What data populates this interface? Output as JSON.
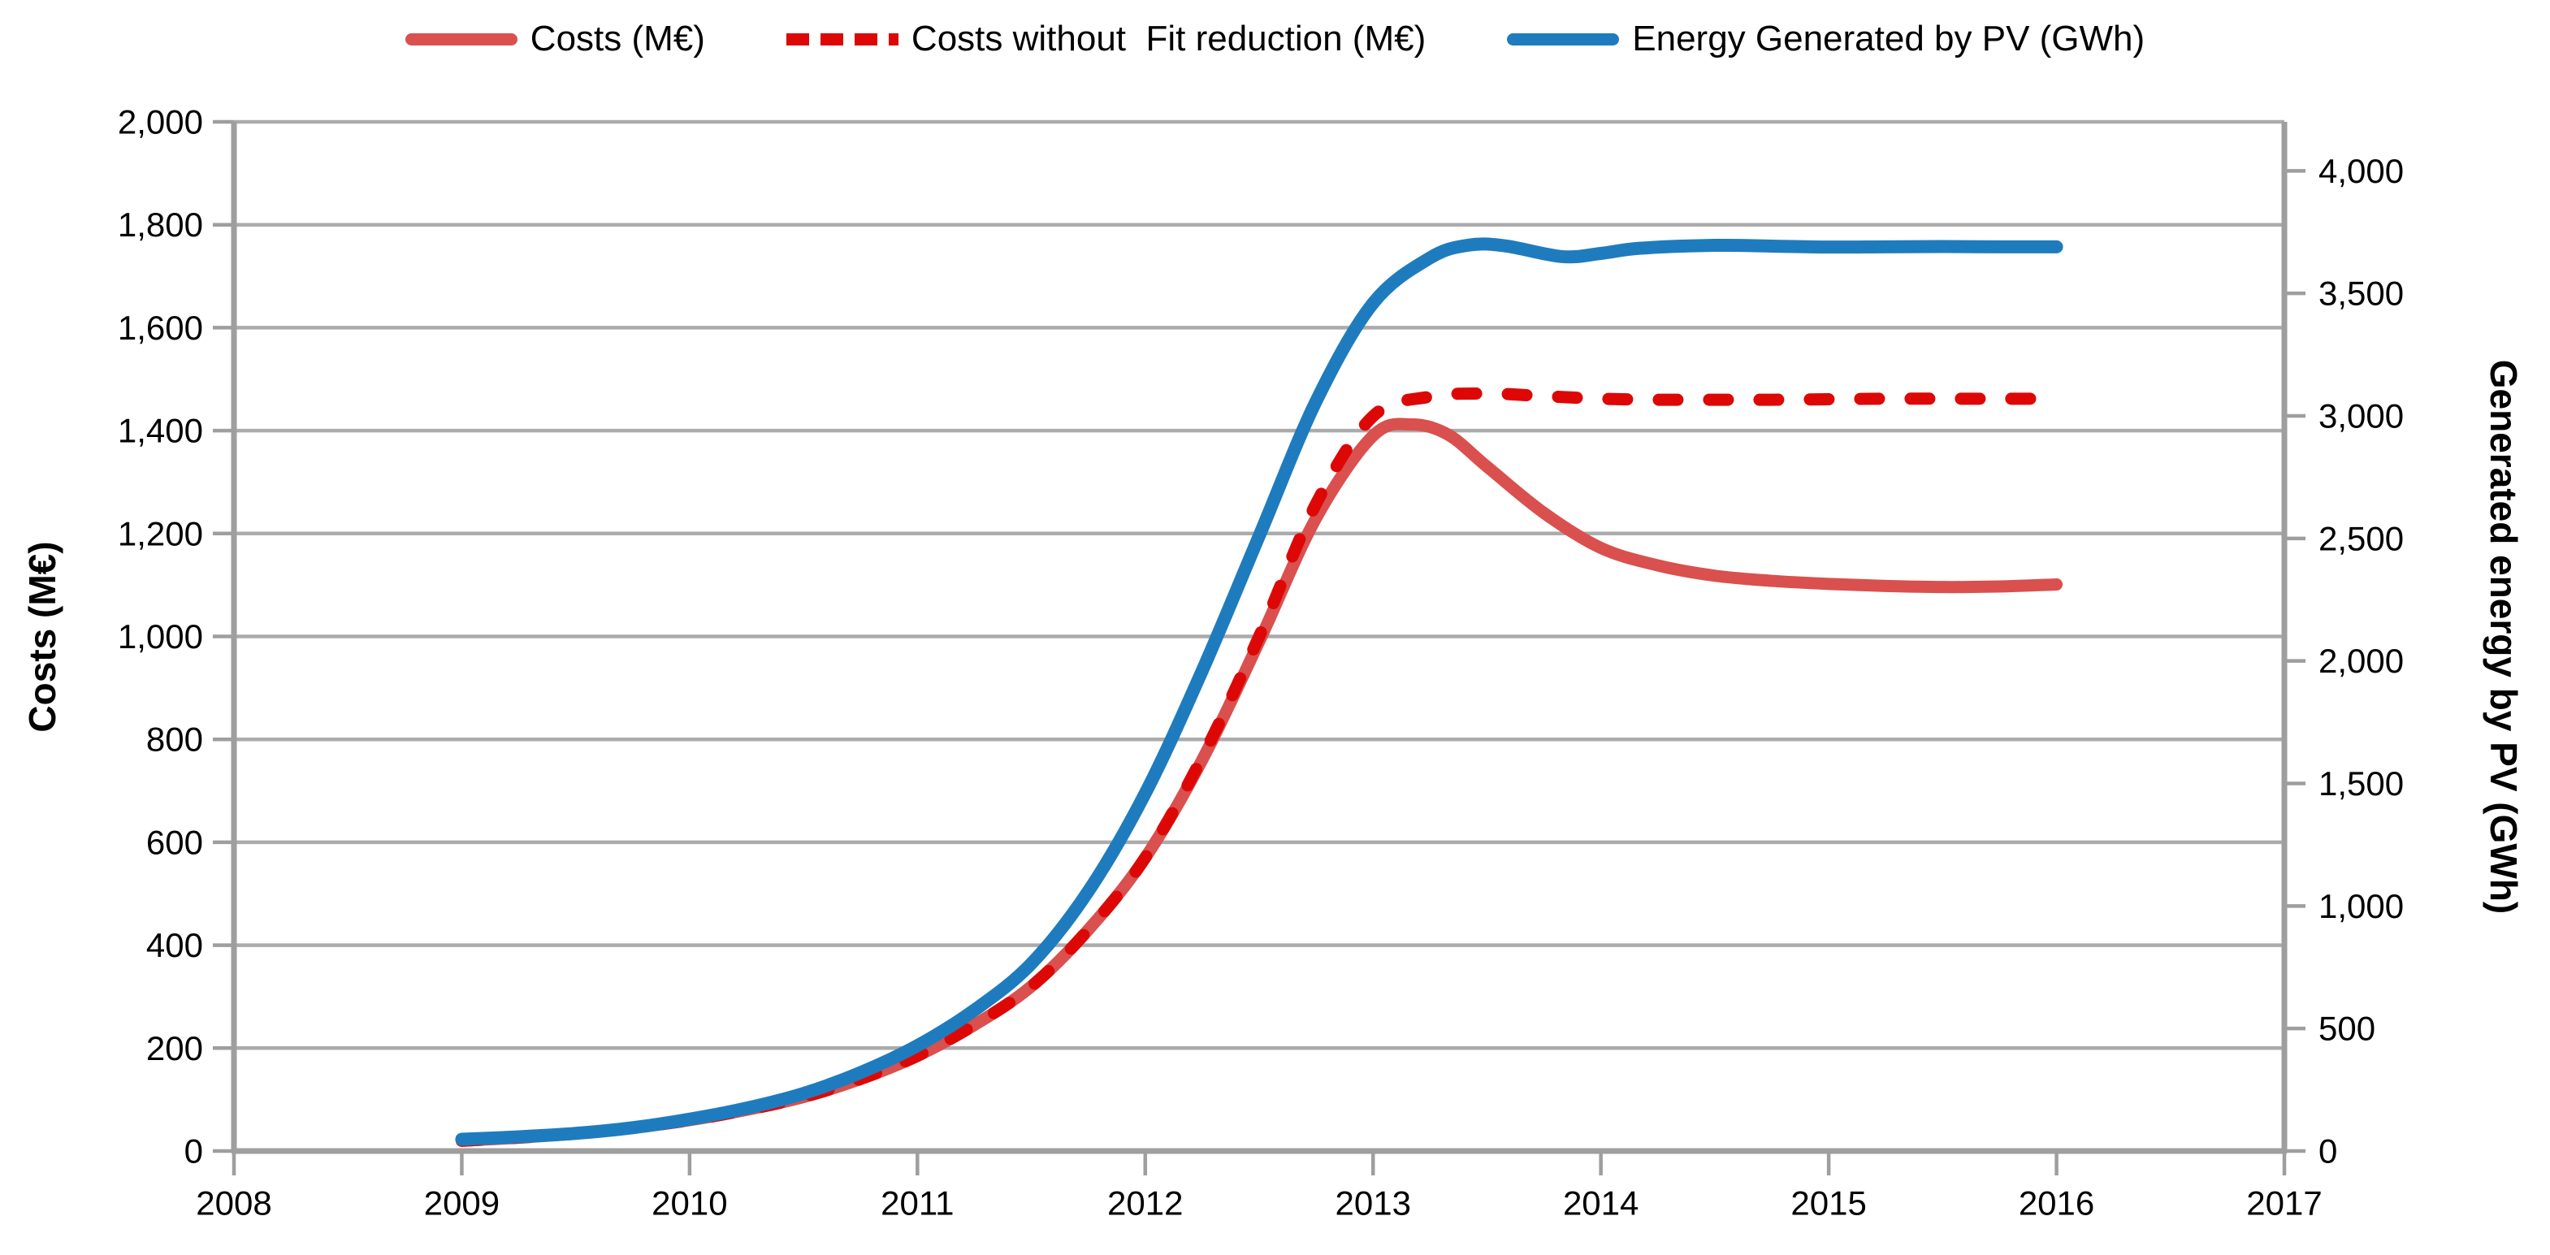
{
  "legend": {
    "items": [
      {
        "label": "Costs (M€)",
        "color": "#D9504E",
        "style": "solid"
      },
      {
        "label": "Costs without  Fit reduction (M€)",
        "color": "#DD0806",
        "style": "dashed"
      },
      {
        "label": "Energy Generated by PV (GWh)",
        "color": "#1E7CBE",
        "style": "solid"
      }
    ]
  },
  "colors": {
    "background": "#FFFFFF",
    "grid": "#ABABAB",
    "axis": "#9E9E9E",
    "text": "#000000"
  },
  "chart_data": {
    "type": "line",
    "title": "",
    "xlabel": "",
    "ylabel_left": "Costs (M€)",
    "ylabel_right": "Generated energy by PV (GWh)",
    "grid": "horizontal",
    "legend_position": "top",
    "x_axis": {
      "min": 2008,
      "max": 2017,
      "tick_values": [
        2008,
        2009,
        2010,
        2011,
        2012,
        2013,
        2014,
        2015,
        2016,
        2017
      ],
      "tick_labels": [
        "2008",
        "2009",
        "2010",
        "2011",
        "2012",
        "2013",
        "2014",
        "2015",
        "2016",
        "2017"
      ]
    },
    "left_axis": {
      "min": 0,
      "max": 2000,
      "step": 200,
      "tick_labels": [
        "0",
        "200",
        "400",
        "600",
        "800",
        "1,000",
        "1,200",
        "1,400",
        "1,600",
        "1,800",
        "2,000"
      ]
    },
    "right_axis": {
      "min": 0,
      "max": 4200,
      "step": 500,
      "tick_labels": [
        "0",
        "500",
        "1,000",
        "1,500",
        "2,000",
        "2,500",
        "3,000",
        "3,500",
        "4,000"
      ]
    },
    "series": [
      {
        "name": "Costs (M€)",
        "axis": "left",
        "color": "#D9504E",
        "dash": "solid",
        "points": [
          [
            2009,
            20
          ],
          [
            2009.25,
            26
          ],
          [
            2009.5,
            34
          ],
          [
            2009.75,
            45
          ],
          [
            2010,
            60
          ],
          [
            2010.25,
            80
          ],
          [
            2010.5,
            105
          ],
          [
            2010.75,
            140
          ],
          [
            2011,
            185
          ],
          [
            2011.25,
            245
          ],
          [
            2011.5,
            320
          ],
          [
            2011.75,
            430
          ],
          [
            2012,
            570
          ],
          [
            2012.25,
            760
          ],
          [
            2012.5,
            990
          ],
          [
            2012.75,
            1230
          ],
          [
            2013,
            1390
          ],
          [
            2013.17,
            1412
          ],
          [
            2013.33,
            1392
          ],
          [
            2013.5,
            1330
          ],
          [
            2013.75,
            1240
          ],
          [
            2014,
            1172
          ],
          [
            2014.25,
            1138
          ],
          [
            2014.5,
            1118
          ],
          [
            2014.75,
            1108
          ],
          [
            2015,
            1102
          ],
          [
            2015.25,
            1098
          ],
          [
            2015.5,
            1096
          ],
          [
            2015.75,
            1097
          ],
          [
            2016,
            1101
          ]
        ]
      },
      {
        "name": "Costs without  Fit reduction (M€)",
        "axis": "left",
        "color": "#DD0806",
        "dash": "dashed",
        "points": [
          [
            2009,
            20
          ],
          [
            2009.25,
            26
          ],
          [
            2009.5,
            34
          ],
          [
            2009.75,
            45
          ],
          [
            2010,
            60
          ],
          [
            2010.25,
            80
          ],
          [
            2010.5,
            105
          ],
          [
            2010.75,
            140
          ],
          [
            2011,
            185
          ],
          [
            2011.25,
            245
          ],
          [
            2011.5,
            320
          ],
          [
            2011.75,
            430
          ],
          [
            2012,
            570
          ],
          [
            2012.25,
            765
          ],
          [
            2012.5,
            1000
          ],
          [
            2012.75,
            1258
          ],
          [
            2013,
            1428
          ],
          [
            2013.25,
            1466
          ],
          [
            2013.5,
            1472
          ],
          [
            2013.75,
            1467
          ],
          [
            2014,
            1462
          ],
          [
            2014.25,
            1460
          ],
          [
            2014.5,
            1460
          ],
          [
            2014.75,
            1460
          ],
          [
            2015,
            1461
          ],
          [
            2015.25,
            1462
          ],
          [
            2015.5,
            1462
          ],
          [
            2015.75,
            1462
          ],
          [
            2016,
            1462
          ]
        ]
      },
      {
        "name": "Energy Generated by PV (GWh)",
        "axis": "right",
        "color": "#1E7CBE",
        "dash": "solid",
        "points": [
          [
            2009,
            48
          ],
          [
            2009.25,
            58
          ],
          [
            2009.5,
            72
          ],
          [
            2009.75,
            95
          ],
          [
            2010,
            130
          ],
          [
            2010.25,
            175
          ],
          [
            2010.5,
            235
          ],
          [
            2010.75,
            320
          ],
          [
            2011,
            430
          ],
          [
            2011.25,
            575
          ],
          [
            2011.5,
            765
          ],
          [
            2011.75,
            1060
          ],
          [
            2012,
            1460
          ],
          [
            2012.25,
            1960
          ],
          [
            2012.5,
            2510
          ],
          [
            2012.75,
            3060
          ],
          [
            2013,
            3460
          ],
          [
            2013.25,
            3645
          ],
          [
            2013.42,
            3697
          ],
          [
            2013.58,
            3694
          ],
          [
            2013.83,
            3650
          ],
          [
            2014,
            3663
          ],
          [
            2014.17,
            3684
          ],
          [
            2014.5,
            3696
          ],
          [
            2014.75,
            3693
          ],
          [
            2015,
            3689
          ],
          [
            2015.25,
            3690
          ],
          [
            2015.5,
            3691
          ],
          [
            2015.75,
            3690
          ],
          [
            2016,
            3690
          ]
        ]
      }
    ]
  }
}
